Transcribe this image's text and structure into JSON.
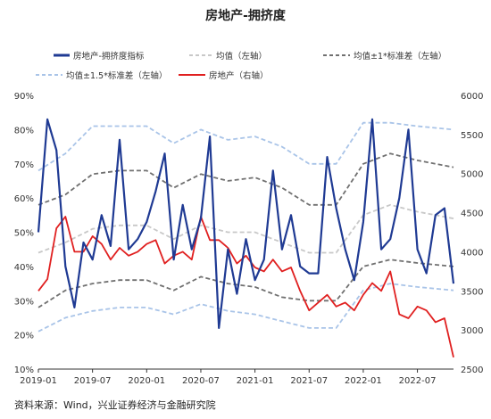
{
  "chart_data": {
    "type": "line",
    "title": "房地产-拥挤度",
    "source": "资料来源：Wind，兴业证券经济与金融研究院",
    "x_ticks": [
      "2019-01",
      "2019-07",
      "2020-01",
      "2020-07",
      "2021-01",
      "2021-07",
      "2022-01",
      "2022-07"
    ],
    "x_range": [
      "2019-01",
      "2022-11"
    ],
    "y_left": {
      "ticks": [
        "90%",
        "80%",
        "70%",
        "60%",
        "50%",
        "40%",
        "30%",
        "20%",
        "10%"
      ],
      "min": 10,
      "max": 90
    },
    "y_right": {
      "ticks": [
        "6000",
        "5500",
        "5000",
        "4500",
        "4000",
        "3500",
        "3000",
        "2500"
      ],
      "min": 2500,
      "max": 6000
    },
    "legend": [
      "房地产-拥挤度指标",
      "均值（左轴）",
      "均值±1*标准差（左轴）",
      "均值±1.5*标准差（左轴）",
      "房地产（右轴）"
    ],
    "colors": {
      "crowding": "#1f3a93",
      "mean": "#c8c8c8",
      "std1": "#707070",
      "std15": "#a9c4e8",
      "realestate": "#e02020"
    },
    "series": [
      {
        "name": "房地产-拥挤度指标",
        "axis": "left",
        "color_key": "crowding",
        "x": [
          "2019-01",
          "2019-02",
          "2019-03",
          "2019-04",
          "2019-05",
          "2019-06",
          "2019-07",
          "2019-08",
          "2019-09",
          "2019-10",
          "2019-11",
          "2019-12",
          "2020-01",
          "2020-02",
          "2020-03",
          "2020-04",
          "2020-05",
          "2020-06",
          "2020-07",
          "2020-08",
          "2020-09",
          "2020-10",
          "2020-11",
          "2020-12",
          "2021-01",
          "2021-02",
          "2021-03",
          "2021-04",
          "2021-05",
          "2021-06",
          "2021-07",
          "2021-08",
          "2021-09",
          "2021-10",
          "2021-11",
          "2021-12",
          "2022-01",
          "2022-02",
          "2022-03",
          "2022-04",
          "2022-05",
          "2022-06",
          "2022-07",
          "2022-08",
          "2022-09",
          "2022-10",
          "2022-11"
        ],
        "values": [
          50,
          83,
          74,
          40,
          28,
          47,
          42,
          55,
          46,
          77,
          45,
          48,
          53,
          62,
          73,
          42,
          58,
          45,
          54,
          78,
          22,
          45,
          32,
          48,
          36,
          42,
          68,
          45,
          55,
          40,
          38,
          38,
          72,
          57,
          45,
          36,
          53,
          83,
          45,
          48,
          60,
          80,
          45,
          38,
          55,
          57,
          35
        ]
      },
      {
        "name": "均值（左轴）",
        "axis": "left",
        "color_key": "mean",
        "dashed": true,
        "x": [
          "2019-01",
          "2019-04",
          "2019-07",
          "2019-10",
          "2020-01",
          "2020-04",
          "2020-07",
          "2020-10",
          "2021-01",
          "2021-04",
          "2021-07",
          "2021-10",
          "2022-01",
          "2022-04",
          "2022-07",
          "2022-11"
        ],
        "values": [
          44,
          47,
          51,
          52,
          52,
          48,
          52,
          50,
          50,
          47,
          44,
          44,
          55,
          58,
          56,
          54
        ]
      },
      {
        "name": "均值±1*标准差（左轴）",
        "axis": "left",
        "color_key": "std1",
        "dashed": true,
        "x": [
          "2019-01",
          "2019-04",
          "2019-07",
          "2019-10",
          "2020-01",
          "2020-04",
          "2020-07",
          "2020-10",
          "2021-01",
          "2021-04",
          "2021-07",
          "2021-10",
          "2022-01",
          "2022-04",
          "2022-07",
          "2022-11"
        ],
        "values": [
          58,
          61,
          67,
          68,
          68,
          63,
          67,
          65,
          66,
          63,
          58,
          58,
          70,
          73,
          71,
          69
        ]
      },
      {
        "name": "均值±1*标准差（左轴）下沿",
        "axis": "left",
        "color_key": "std1",
        "dashed": true,
        "legend_hidden": true,
        "x": [
          "2019-01",
          "2019-04",
          "2019-07",
          "2019-10",
          "2020-01",
          "2020-04",
          "2020-07",
          "2020-10",
          "2021-01",
          "2021-04",
          "2021-07",
          "2021-10",
          "2022-01",
          "2022-04",
          "2022-07",
          "2022-11"
        ],
        "values": [
          28,
          33,
          35,
          36,
          36,
          33,
          37,
          35,
          34,
          31,
          30,
          30,
          40,
          42,
          41,
          40
        ]
      },
      {
        "name": "均值±1.5*标准差（左轴）",
        "axis": "left",
        "color_key": "std15",
        "dashed": true,
        "x": [
          "2019-01",
          "2019-04",
          "2019-07",
          "2019-10",
          "2020-01",
          "2020-04",
          "2020-07",
          "2020-10",
          "2021-01",
          "2021-04",
          "2021-07",
          "2021-10",
          "2022-01",
          "2022-04",
          "2022-07",
          "2022-11"
        ],
        "values": [
          68,
          73,
          81,
          81,
          81,
          76,
          80,
          77,
          78,
          75,
          70,
          70,
          82,
          82,
          81,
          80
        ]
      },
      {
        "name": "均值±1.5*标准差（左轴）下沿",
        "axis": "left",
        "color_key": "std15",
        "dashed": true,
        "legend_hidden": true,
        "x": [
          "2019-01",
          "2019-04",
          "2019-07",
          "2019-10",
          "2020-01",
          "2020-04",
          "2020-07",
          "2020-10",
          "2021-01",
          "2021-04",
          "2021-07",
          "2021-10",
          "2022-01",
          "2022-04",
          "2022-07",
          "2022-11"
        ],
        "values": [
          21,
          25,
          27,
          28,
          28,
          26,
          29,
          27,
          26,
          24,
          22,
          22,
          33,
          35,
          34,
          33
        ]
      },
      {
        "name": "房地产（右轴）",
        "axis": "right",
        "color_key": "realestate",
        "x": [
          "2019-01",
          "2019-02",
          "2019-03",
          "2019-04",
          "2019-05",
          "2019-06",
          "2019-07",
          "2019-08",
          "2019-09",
          "2019-10",
          "2019-11",
          "2019-12",
          "2020-01",
          "2020-02",
          "2020-03",
          "2020-04",
          "2020-05",
          "2020-06",
          "2020-07",
          "2020-08",
          "2020-09",
          "2020-10",
          "2020-11",
          "2020-12",
          "2021-01",
          "2021-02",
          "2021-03",
          "2021-04",
          "2021-05",
          "2021-06",
          "2021-07",
          "2021-08",
          "2021-09",
          "2021-10",
          "2021-11",
          "2021-12",
          "2022-01",
          "2022-02",
          "2022-03",
          "2022-04",
          "2022-05",
          "2022-06",
          "2022-07",
          "2022-08",
          "2022-09",
          "2022-10",
          "2022-11"
        ],
        "values": [
          3500,
          3650,
          4300,
          4450,
          4000,
          4000,
          4200,
          4100,
          3900,
          4050,
          3950,
          4000,
          4100,
          4150,
          3850,
          3950,
          4000,
          3900,
          4450,
          4150,
          4150,
          4050,
          3850,
          3950,
          3800,
          3750,
          3900,
          3750,
          3800,
          3500,
          3250,
          3350,
          3450,
          3300,
          3350,
          3250,
          3450,
          3600,
          3500,
          3750,
          3200,
          3150,
          3300,
          3250,
          3100,
          3150,
          2650
        ]
      }
    ]
  }
}
